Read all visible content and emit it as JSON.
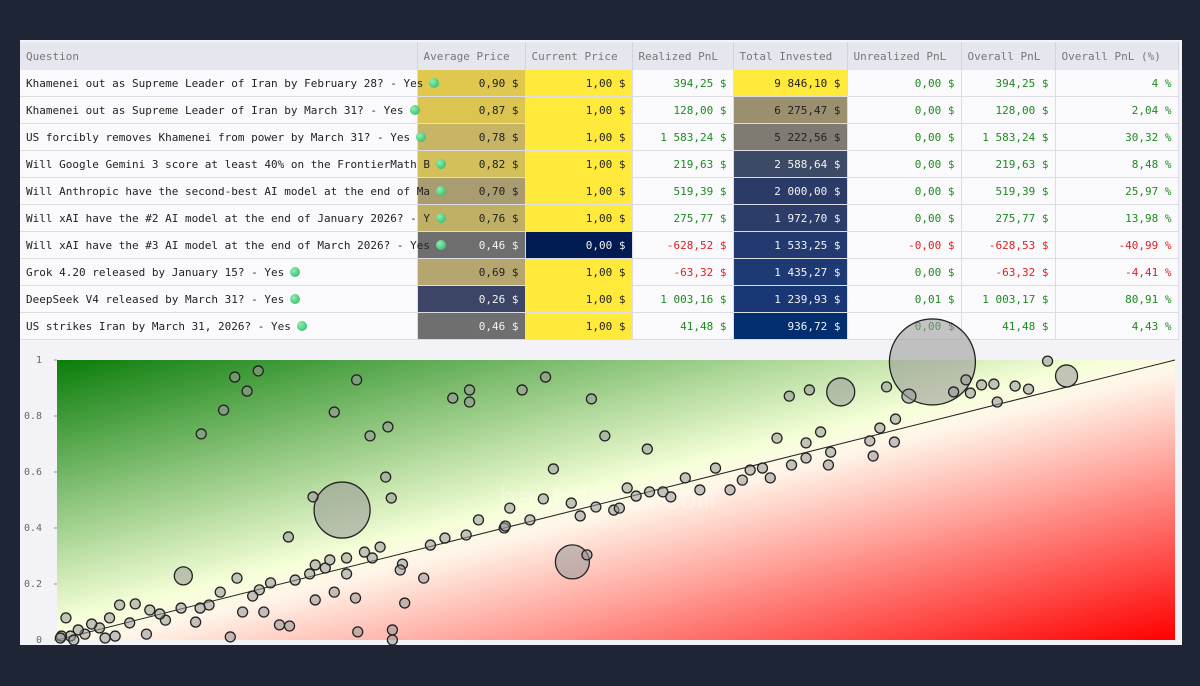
{
  "table": {
    "header": [
      "Question",
      "Average Price",
      "Current Price",
      "Realized PnL",
      "Total Invested",
      "Unrealized PnL",
      "Overall PnL",
      "Overall PnL (%)"
    ],
    "rows": [
      [
        "Khamenei out as Supreme Leader of Iran by February 28? - Yes",
        "0,90 $",
        "1,00 $",
        "394,25 $",
        "9 846,10 $",
        "0,00 $",
        "394,25 $",
        "4 %"
      ],
      [
        "Khamenei out as Supreme Leader of Iran by March 31? - Yes",
        "0,87 $",
        "1,00 $",
        "128,00 $",
        "6 275,47 $",
        "0,00 $",
        "128,00 $",
        "2,04 %"
      ],
      [
        "US forcibly removes Khamenei from power by March 31? - Yes",
        "0,78 $",
        "1,00 $",
        "1 583,24 $",
        "5 222,56 $",
        "0,00 $",
        "1 583,24 $",
        "30,32 %"
      ],
      [
        "Will Google Gemini 3 score at least 40% on the FrontierMath B",
        "0,82 $",
        "1,00 $",
        "219,63 $",
        "2 588,64 $",
        "0,00 $",
        "219,63 $",
        "8,48 %"
      ],
      [
        "Will Anthropic have the second-best AI model at the end of Ma",
        "0,70 $",
        "1,00 $",
        "519,39 $",
        "2 000,00 $",
        "0,00 $",
        "519,39 $",
        "25,97 %"
      ],
      [
        "Will xAI have the #2 AI model at the end of January 2026? - Y",
        "0,76 $",
        "1,00 $",
        "275,77 $",
        "1 972,70 $",
        "0,00 $",
        "275,77 $",
        "13,98 %"
      ],
      [
        "Will xAI have the #3 AI model at the end of March 2026? - Yes",
        "0,46 $",
        "0,00 $",
        "-628,52 $",
        "1 533,25 $",
        "-0,00 $",
        "-628,53 $",
        "-40,99 %"
      ],
      [
        "Grok 4.20 released by January 15? - Yes",
        "0,69 $",
        "1,00 $",
        "-63,32 $",
        "1 435,27 $",
        "0,00 $",
        "-63,32 $",
        "-4,41 %"
      ],
      [
        "DeepSeek V4 released by March 31? - Yes",
        "0,26 $",
        "1,00 $",
        "1 003,16 $",
        "1 239,93 $",
        "0,01 $",
        "1 003,17 $",
        "80,91 %"
      ],
      [
        "US strikes Iran by March 31, 2026? - Yes",
        "0,46 $",
        "1,00 $",
        "41,48 $",
        "936,72 $",
        "0,00 $",
        "41,48 $",
        "4,43 %"
      ]
    ],
    "cell_colors": [
      [
        "#e0c84e",
        "#ffe93a",
        "#ffe93a"
      ],
      [
        "#dcc450",
        "#ffe93a",
        "#9a8f6e"
      ],
      [
        "#c7b465",
        "#ffe93a",
        "#7f7b72"
      ],
      [
        "#d3c05a",
        "#ffe93a",
        "#3d4a65"
      ],
      [
        "#a89c70",
        "#ffe93a",
        "#2a3b68"
      ],
      [
        "#c0b065",
        "#ffe93a",
        "#2c3d6a"
      ],
      [
        "#6e6e6e",
        "#001a52",
        "#223a70"
      ],
      [
        "#b5a670",
        "#ffe93a",
        "#1e3a75"
      ],
      [
        "#3c4566",
        "#ffe93a",
        "#1a3775"
      ],
      [
        "#6f6f6f",
        "#ffe93a",
        "#002e6e"
      ]
    ]
  },
  "chart_data": {
    "type": "scatter",
    "watermark": "hashdive.com",
    "xlim": [
      0,
      1
    ],
    "ylim": [
      0,
      1
    ],
    "yticks": [
      0,
      0.2,
      0.4,
      0.6,
      0.8,
      1
    ],
    "color": "rgba(150,150,150,0.55)",
    "x": [
      0.783,
      0.255,
      0.461,
      0.701,
      0.903,
      0.113,
      0.762,
      0.159,
      0.18,
      0.17,
      0.149,
      0.129,
      0.268,
      0.248,
      0.28,
      0.296,
      0.294,
      0.299,
      0.354,
      0.369,
      0.369,
      0.416,
      0.437,
      0.478,
      0.49,
      0.528,
      0.444,
      0.377,
      0.4,
      0.405,
      0.435,
      0.46,
      0.468,
      0.482,
      0.498,
      0.503,
      0.51,
      0.518,
      0.53,
      0.542,
      0.549,
      0.562,
      0.575,
      0.589,
      0.602,
      0.613,
      0.62,
      0.631,
      0.638,
      0.644,
      0.657,
      0.67,
      0.67,
      0.683,
      0.69,
      0.692,
      0.727,
      0.73,
      0.75,
      0.749,
      0.742,
      0.736,
      0.655,
      0.673,
      0.802,
      0.813,
      0.827,
      0.838,
      0.857,
      0.869,
      0.886,
      0.841,
      0.817,
      0.229,
      0.207,
      0.289,
      0.282,
      0.309,
      0.328,
      0.259,
      0.24,
      0.226,
      0.213,
      0.191,
      0.181,
      0.161,
      0.146,
      0.136,
      0.111,
      0.124,
      0.155,
      0.185,
      0.199,
      0.208,
      0.269,
      0.3,
      0.311,
      0.267,
      0.248,
      0.231,
      0.166,
      0.097,
      0.08,
      0.052,
      0.038,
      0.025,
      0.012,
      0.004,
      0.008,
      0.056,
      0.07,
      0.083,
      0.047,
      0.031,
      0.019,
      0.065,
      0.092,
      0.128,
      0.175,
      0.231,
      0.244,
      0.259,
      0.275,
      0.307,
      0.334,
      0.347,
      0.366,
      0.401,
      0.423,
      0.474,
      0.3,
      0.015,
      0.043,
      0.003
    ],
    "y": [
      0.993,
      0.464,
      0.279,
      0.886,
      0.943,
      0.229,
      0.871,
      0.939,
      0.961,
      0.889,
      0.821,
      0.736,
      0.929,
      0.814,
      0.729,
      0.761,
      0.582,
      0.507,
      0.864,
      0.893,
      0.85,
      0.893,
      0.939,
      0.861,
      0.729,
      0.682,
      0.611,
      0.429,
      0.4,
      0.471,
      0.504,
      0.489,
      0.443,
      0.475,
      0.464,
      0.471,
      0.543,
      0.514,
      0.529,
      0.529,
      0.511,
      0.579,
      0.536,
      0.614,
      0.536,
      0.571,
      0.607,
      0.614,
      0.579,
      0.721,
      0.625,
      0.704,
      0.65,
      0.743,
      0.625,
      0.671,
      0.711,
      0.657,
      0.789,
      0.707,
      0.904,
      0.757,
      0.871,
      0.893,
      0.886,
      0.929,
      0.911,
      0.914,
      0.907,
      0.896,
      0.996,
      0.85,
      0.882,
      0.511,
      0.368,
      0.332,
      0.293,
      0.271,
      0.221,
      0.236,
      0.257,
      0.236,
      0.214,
      0.204,
      0.179,
      0.221,
      0.171,
      0.125,
      0.114,
      0.064,
      0.011,
      0.1,
      0.054,
      0.05,
      0.029,
      0.036,
      0.132,
      0.15,
      0.171,
      0.143,
      0.1,
      0.071,
      0.021,
      0.014,
      0.043,
      0.021,
      0.014,
      0.014,
      0.079,
      0.125,
      0.129,
      0.107,
      0.079,
      0.057,
      0.036,
      0.061,
      0.093,
      0.114,
      0.157,
      0.268,
      0.286,
      0.293,
      0.314,
      0.25,
      0.339,
      0.364,
      0.375,
      0.407,
      0.429,
      0.304,
      0,
      0,
      0.007,
      0.007
    ],
    "sizes": [
      43,
      28,
      17,
      14,
      11,
      9,
      7,
      5,
      5,
      5,
      5,
      5,
      5,
      5,
      5,
      5,
      5,
      5,
      5,
      5,
      5,
      5,
      5,
      5,
      5,
      5,
      5,
      5,
      5,
      5,
      5,
      5,
      5,
      5,
      5,
      5,
      5,
      5,
      5,
      5,
      5,
      5,
      5,
      5,
      5,
      5,
      5,
      5,
      5,
      5,
      5,
      5,
      5,
      5,
      5,
      5,
      5,
      5,
      5,
      5,
      5,
      5,
      5,
      5,
      5,
      5,
      5,
      5,
      5,
      5,
      5,
      5,
      5,
      5,
      5,
      5,
      5,
      5,
      5,
      5,
      5,
      5,
      5,
      5,
      5,
      5,
      5,
      5,
      5,
      5,
      5,
      5,
      5,
      5,
      5,
      5,
      5,
      5,
      5,
      5,
      5,
      5,
      5,
      5,
      5,
      5,
      5,
      5,
      5,
      5,
      5,
      5,
      5,
      5,
      5,
      5,
      5,
      5,
      5,
      5,
      5,
      5,
      5,
      5,
      5,
      5,
      5,
      5,
      5,
      5,
      5,
      5,
      5,
      5
    ]
  }
}
